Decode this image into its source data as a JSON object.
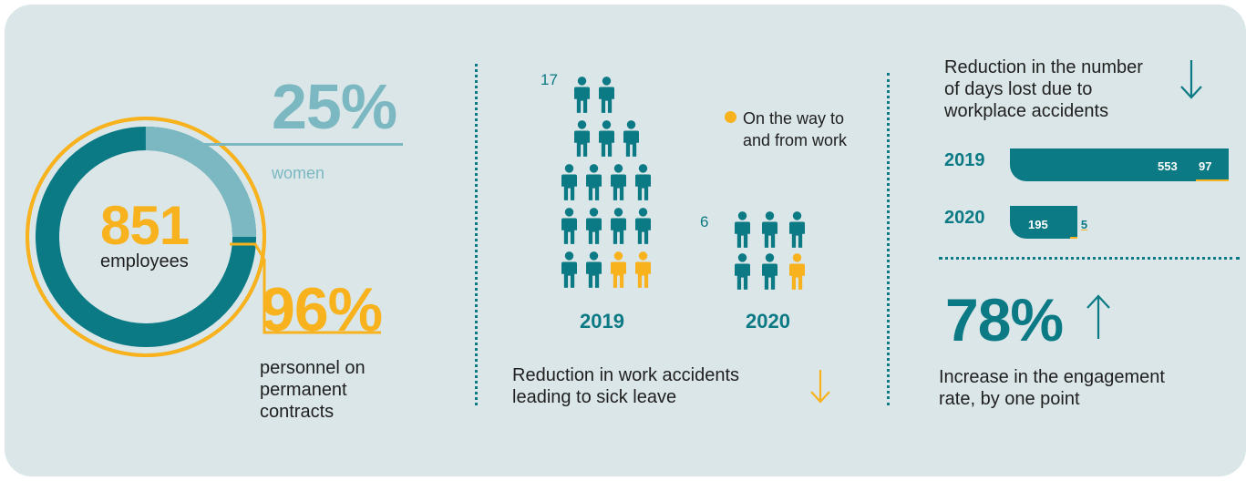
{
  "colors": {
    "teal": "#0b7a85",
    "yellow": "#f7b21e",
    "light_teal": "#7cb8c1",
    "background": "#dbe6e8"
  },
  "employees": {
    "count": "851",
    "label": "employees",
    "women_pct": "25%",
    "women_label": "women",
    "permanent_pct": "96%",
    "permanent_label_lines": [
      "personnel on",
      "permanent",
      "contracts"
    ],
    "women_fraction": 0.25,
    "permanent_fraction": 0.96
  },
  "accidents": {
    "legend_label_lines": [
      "On the way to",
      "and from work"
    ],
    "years": [
      {
        "year": "2019",
        "count_label": "17",
        "total": 17,
        "commute": 2
      },
      {
        "year": "2020",
        "count_label": "6",
        "total": 6,
        "commute": 1
      }
    ],
    "caption_lines": [
      "Reduction in work accidents",
      "leading to sick leave"
    ],
    "arrow_icon": "arrow-down-icon"
  },
  "days_lost": {
    "title_lines": [
      "Reduction in the number",
      "of days lost due to",
      "workplace accidents"
    ],
    "arrow_icon": "arrow-down-icon",
    "rows": [
      {
        "year": "2019",
        "main": 553,
        "main_label": "553",
        "commute": 97,
        "commute_label": "97"
      },
      {
        "year": "2020",
        "main": 195,
        "main_label": "195",
        "commute": 5,
        "commute_label": "5"
      }
    ]
  },
  "engagement": {
    "value": "78%",
    "arrow_icon": "arrow-up-icon",
    "caption_lines": [
      "Increase in the engagement",
      "rate, by one point"
    ]
  }
}
